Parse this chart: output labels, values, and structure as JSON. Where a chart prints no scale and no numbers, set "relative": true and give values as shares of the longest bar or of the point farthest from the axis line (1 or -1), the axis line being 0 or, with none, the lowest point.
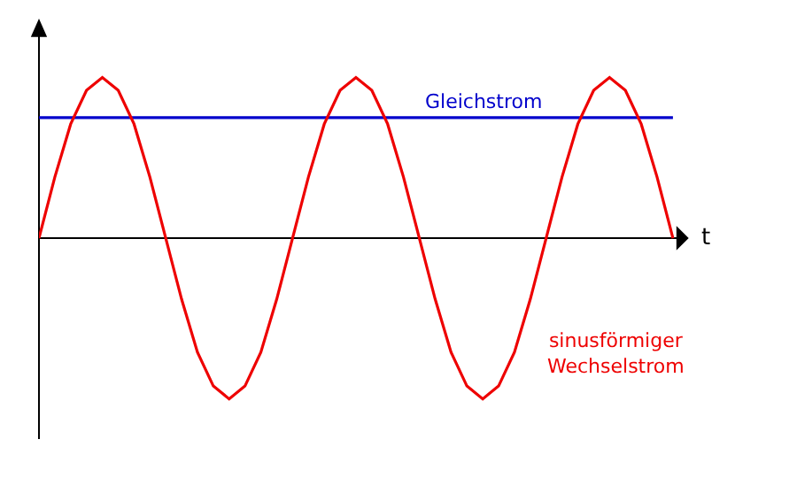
{
  "chart_data": {
    "type": "line",
    "relative": true,
    "xlabel": "t",
    "legend": false,
    "marker": "none",
    "line_style": "solid",
    "categories": [
      null,
      null,
      null,
      null,
      null,
      null,
      null,
      null,
      null,
      null,
      null,
      null,
      null,
      null,
      null,
      null,
      null,
      null,
      null,
      null,
      null,
      null,
      null,
      null,
      null,
      null,
      null,
      null,
      null,
      null,
      null,
      null,
      null,
      null,
      null,
      null,
      null,
      null,
      null,
      null,
      null
    ],
    "series": [
      {
        "name": "Gleichstrom",
        "color": "#0000cc",
        "values": [
          0.75,
          0.75,
          0.75,
          0.75,
          0.75,
          0.75,
          0.75,
          0.75,
          0.75,
          0.75,
          0.75,
          0.75,
          0.75,
          0.75,
          0.75,
          0.75,
          0.75,
          0.75,
          0.75,
          0.75,
          0.75,
          0.75,
          0.75,
          0.75,
          0.75,
          0.75,
          0.75,
          0.75,
          0.75,
          0.75,
          0.75,
          0.75,
          0.75,
          0.75,
          0.75,
          0.75,
          0.75,
          0.75,
          0.75,
          0.75,
          0.75
        ]
      },
      {
        "name": "sinusförmiger Wechselstrom",
        "color": "#ee0000",
        "values": [
          0,
          0.38,
          0.71,
          0.92,
          1,
          0.92,
          0.71,
          0.38,
          0,
          -0.38,
          -0.71,
          -0.92,
          -1,
          -0.92,
          -0.71,
          -0.38,
          0,
          0.38,
          0.71,
          0.92,
          1,
          0.92,
          0.71,
          0.38,
          0,
          -0.38,
          -0.71,
          -0.92,
          -1,
          -0.92,
          -0.71,
          -0.38,
          0,
          0.38,
          0.71,
          0.92,
          1,
          0.92,
          0.71,
          0.38,
          0
        ]
      }
    ]
  }
}
